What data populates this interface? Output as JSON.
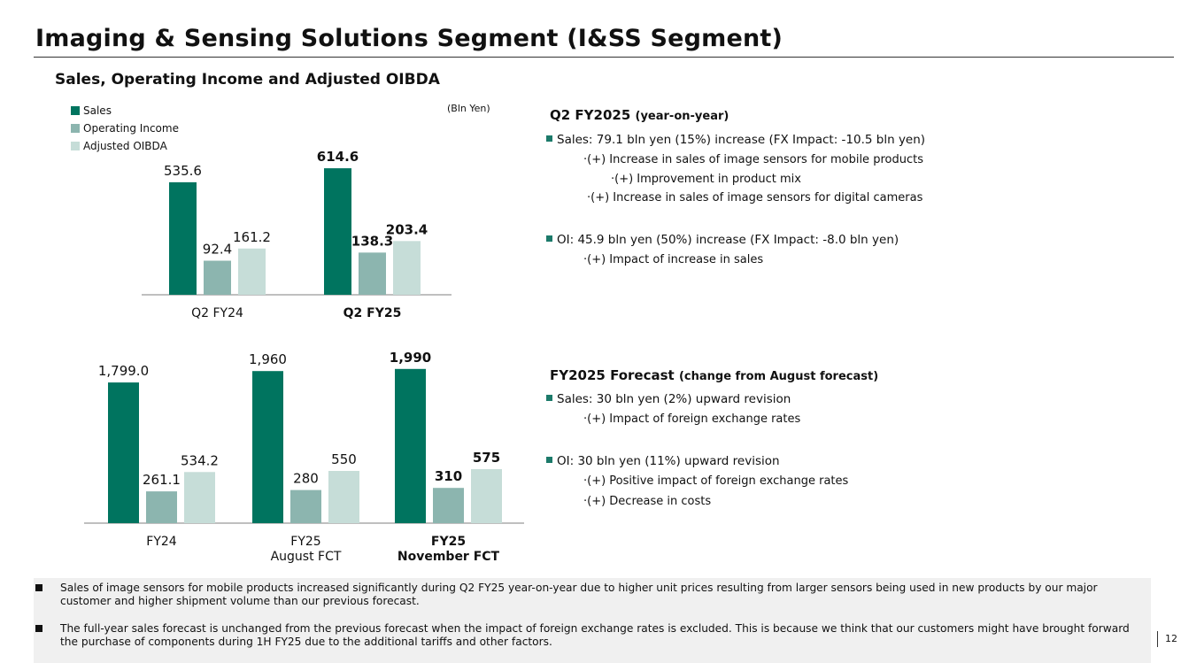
{
  "title": "Imaging & Sensing Solutions Segment (I&SS Segment)",
  "subtitle": "Sales, Operating Income and Adjusted OIBDA",
  "unit": "(Bln Yen)",
  "colors": {
    "sales": "#00745f",
    "oi": "#8cb5af",
    "oibda": "#c6ddd8"
  },
  "chart_data": [
    {
      "type": "bar",
      "title": "Sales, Operating Income and Adjusted OIBDA",
      "unit": "Bln Yen",
      "legend": "top-left",
      "categories": [
        "Q2 FY24",
        "Q2 FY25"
      ],
      "series": [
        {
          "name": "Sales",
          "values": [
            535.6,
            614.6
          ],
          "labels": [
            "535.6",
            "614.6"
          ]
        },
        {
          "name": "Operating Income",
          "values": [
            92.4,
            138.3
          ],
          "labels": [
            "92.4",
            "138.3"
          ]
        },
        {
          "name": "Adjusted OIBDA",
          "values": [
            161.2,
            203.4
          ],
          "labels": [
            "161.2",
            "203.4"
          ]
        }
      ],
      "bold_category": 1
    },
    {
      "type": "bar",
      "categories": [
        "FY24",
        "FY25\nAugust FCT",
        "FY25\nNovember FCT"
      ],
      "series": [
        {
          "name": "Sales",
          "values": [
            1799.0,
            1960,
            1990
          ],
          "labels": [
            "1,799.0",
            "1,960",
            "1,990"
          ]
        },
        {
          "name": "Operating Income",
          "values": [
            261.1,
            280,
            310
          ],
          "labels": [
            "261.1",
            "280",
            "310"
          ]
        },
        {
          "name": "Adjusted OIBDA",
          "values": [
            534.2,
            550,
            575
          ],
          "labels": [
            "534.2",
            "550",
            "575"
          ]
        }
      ],
      "bold_category": 2
    }
  ],
  "q2": {
    "heading": "Q2 FY2025",
    "heading_note": "(year-on-year)",
    "sales": "Sales: 79.1 bln yen (15%) increase (FX Impact: -10.5 bln yen)",
    "sales_points": [
      "·(+) Increase in sales of image sensors for mobile products",
      "·(+) Improvement in product mix",
      "·(+) Increase in sales of image sensors for digital cameras"
    ],
    "oi": "OI: 45.9 bln yen (50%) increase (FX Impact: -8.0 bln yen)",
    "oi_points": [
      "·(+) Impact of increase in sales"
    ]
  },
  "fc": {
    "heading": "FY2025 Forecast",
    "heading_note": "(change from August forecast)",
    "sales": "Sales: 30 bln yen (2%) upward revision",
    "sales_points": [
      "·(+) Impact of foreign exchange rates"
    ],
    "oi": "OI: 30 bln yen (11%) upward revision",
    "oi_points": [
      "·(+) Positive impact of foreign exchange rates",
      "·(+) Decrease in costs"
    ]
  },
  "notes": [
    "Sales of image sensors for mobile products increased significantly during Q2 FY25 year-on-year due to higher unit prices resulting from larger sensors being used in new products by our major customer and higher shipment volume than our previous forecast.",
    "The full-year sales forecast is unchanged from the previous forecast when the impact of foreign exchange rates is excluded. This is because we think that our customers might have brought forward the purchase of components during 1H FY25 due to the additional tariffs and other factors."
  ],
  "page_number": "12"
}
